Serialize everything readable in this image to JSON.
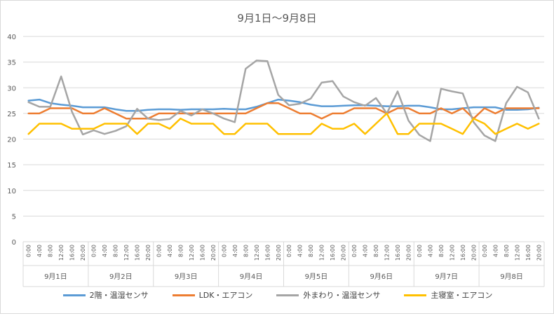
{
  "chart_data": {
    "type": "line",
    "title": "9月1日〜9月8日",
    "ylim": [
      0,
      40
    ],
    "y_ticks": [
      "0",
      "5",
      "10",
      "15",
      "20",
      "25",
      "30",
      "35",
      "40"
    ],
    "x_tick_labels": [
      "0:00",
      "4:00",
      "8:00",
      "12:00",
      "16:00",
      "20:00"
    ],
    "day_labels": [
      "9月1日",
      "9月2日",
      "9月3日",
      "9月4日",
      "9月5日",
      "9月6日",
      "9月7日",
      "9月8日"
    ],
    "grid": "horizontal",
    "legend_position": "bottom",
    "series": [
      {
        "name": "2階・温湿センサ",
        "color": "#5b9bd5",
        "values": [
          27.5,
          27.7,
          27.0,
          26.7,
          26.5,
          26.2,
          26.2,
          26.2,
          25.8,
          25.5,
          25.5,
          25.7,
          25.8,
          25.8,
          25.7,
          25.8,
          25.8,
          25.8,
          25.9,
          25.8,
          25.8,
          26.3,
          27.0,
          27.7,
          27.5,
          27.2,
          26.7,
          26.4,
          26.4,
          26.5,
          26.6,
          26.6,
          26.5,
          26.4,
          26.4,
          26.5,
          26.5,
          26.2,
          25.8,
          25.8,
          26.0,
          26.2,
          26.2,
          26.2,
          25.7,
          25.7,
          25.8,
          26.1
        ]
      },
      {
        "name": "LDK・エアコン",
        "color": "#ed7d31",
        "values": [
          25,
          25,
          26,
          26,
          26,
          25,
          25,
          26,
          25,
          24,
          24,
          24,
          25,
          25,
          25,
          25,
          25,
          25,
          25,
          25,
          25,
          26,
          27,
          27,
          26,
          25,
          25,
          24,
          25,
          25,
          26,
          26,
          26,
          25,
          26,
          26,
          25,
          25,
          26,
          25,
          26,
          24,
          26,
          25,
          26,
          26,
          26,
          26
        ]
      },
      {
        "name": "外まわり・温湿センサ",
        "color": "#a5a5a5",
        "values": [
          27.2,
          26.3,
          26.3,
          32.2,
          25.3,
          20.9,
          21.7,
          21.0,
          21.6,
          22.5,
          25.9,
          24.0,
          23.7,
          23.9,
          25.5,
          24.6,
          25.8,
          25.0,
          24.0,
          23.3,
          33.7,
          35.3,
          35.2,
          28.6,
          26.6,
          26.9,
          27.9,
          31.0,
          31.3,
          28.3,
          27.2,
          26.5,
          28.0,
          25.0,
          29.3,
          23.6,
          20.8,
          19.6,
          29.8,
          29.3,
          28.9,
          23.3,
          20.7,
          19.6,
          27.0,
          30.2,
          29.1,
          24.0
        ]
      },
      {
        "name": "主寝室・エアコン",
        "color": "#ffc000",
        "values": [
          21,
          23,
          23,
          23,
          22,
          22,
          22,
          23,
          23,
          23,
          21,
          23,
          23,
          22,
          24,
          23,
          23,
          23,
          21,
          21,
          23,
          23,
          23,
          21,
          21,
          21,
          21,
          23,
          22,
          22,
          23,
          21,
          23,
          25,
          21,
          21,
          23,
          23,
          23,
          22,
          21,
          24,
          23,
          21,
          22,
          23,
          22,
          23
        ]
      }
    ]
  }
}
